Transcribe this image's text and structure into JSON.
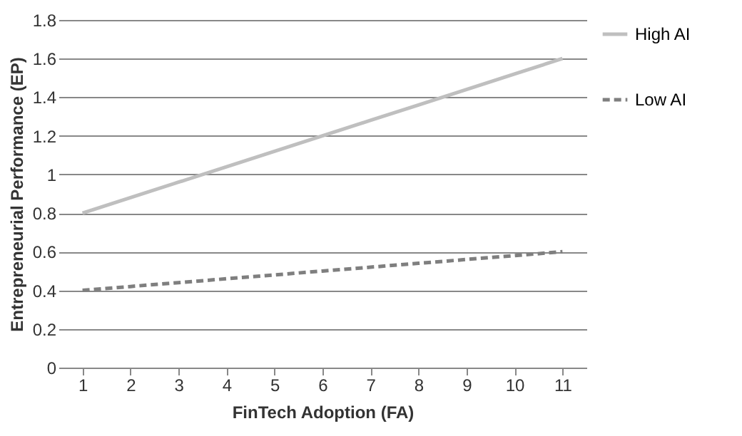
{
  "chart_data": {
    "type": "line",
    "xlabel": "FinTech Adoption (FA)",
    "ylabel": "Entrepreneurial Performance (EP)",
    "categories": [
      "1",
      "2",
      "3",
      "4",
      "5",
      "6",
      "7",
      "8",
      "9",
      "10",
      "11"
    ],
    "series": [
      {
        "name": "High AI",
        "color": "#bfbfbf",
        "line_style": "solid",
        "values": [
          0.8,
          0.88,
          0.96,
          1.04,
          1.12,
          1.2,
          1.28,
          1.36,
          1.44,
          1.52,
          1.6
        ]
      },
      {
        "name": "Low AI",
        "color": "#7f7f7f",
        "line_style": "dashed",
        "values": [
          0.4,
          0.42,
          0.44,
          0.46,
          0.48,
          0.5,
          0.52,
          0.54,
          0.56,
          0.58,
          0.6
        ]
      }
    ],
    "ylim": [
      0,
      1.8
    ],
    "yticks": [
      0,
      0.2,
      0.4,
      0.6,
      0.8,
      1,
      1.2,
      1.4,
      1.6,
      1.8
    ],
    "grid": "y",
    "legend": "right",
    "marker": "none"
  }
}
